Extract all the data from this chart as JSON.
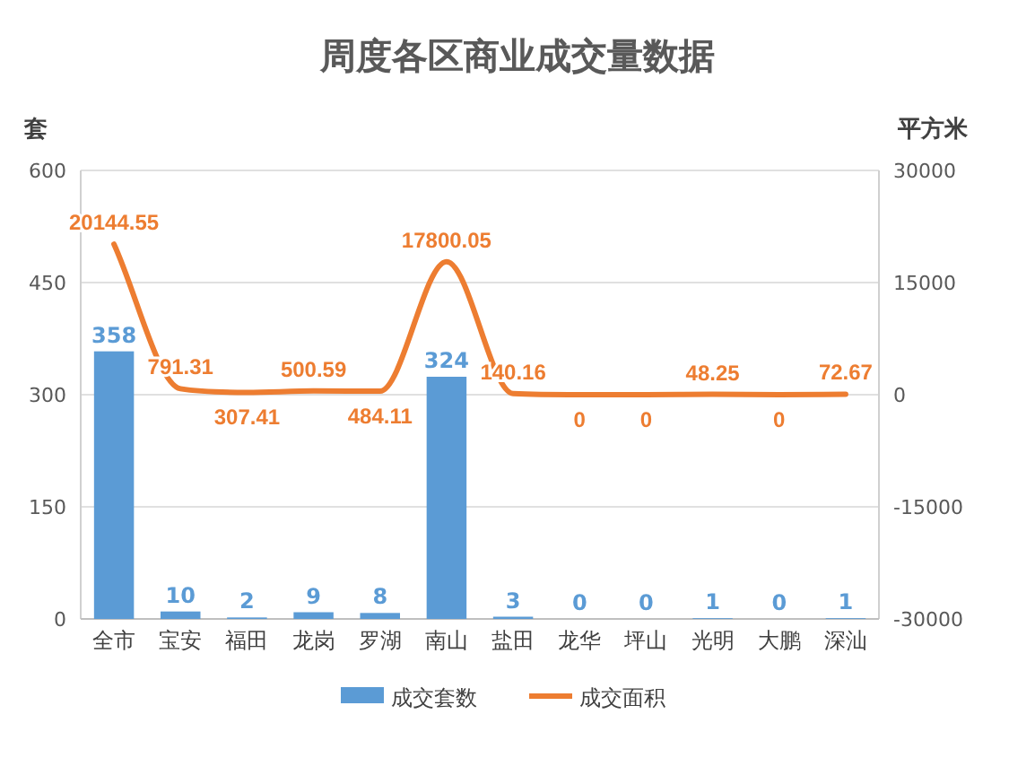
{
  "chart_data": {
    "type": "bar",
    "title": "周度各区商业成交量数据",
    "ylabel": "套",
    "y2label": "平方米",
    "categories": [
      "全市",
      "宝安",
      "福田",
      "龙岗",
      "罗湖",
      "南山",
      "盐田",
      "龙华",
      "坪山",
      "光明",
      "大鹏",
      "深汕"
    ],
    "series": [
      {
        "name": "成交套数",
        "color": "#5b9bd5",
        "values": [
          358,
          10,
          2,
          9,
          8,
          324,
          3,
          0,
          0,
          1,
          0,
          1
        ]
      },
      {
        "name": "成交面积",
        "type": "line",
        "axis": "y2",
        "color": "#ed7d31",
        "values": [
          20144.55,
          791.31,
          307.41,
          500.59,
          484.11,
          17800.05,
          140.16,
          0,
          0,
          48.25,
          0,
          72.67
        ]
      }
    ],
    "ylim": [
      0,
      600
    ],
    "yticks": [
      0,
      150,
      300,
      450,
      600
    ],
    "y2lim": [
      -30000,
      30000
    ],
    "y2ticks": [
      -30000,
      -15000,
      0,
      15000,
      30000
    ],
    "grid": "y",
    "legend": "bottom",
    "data_labels": true,
    "marker": "none"
  }
}
